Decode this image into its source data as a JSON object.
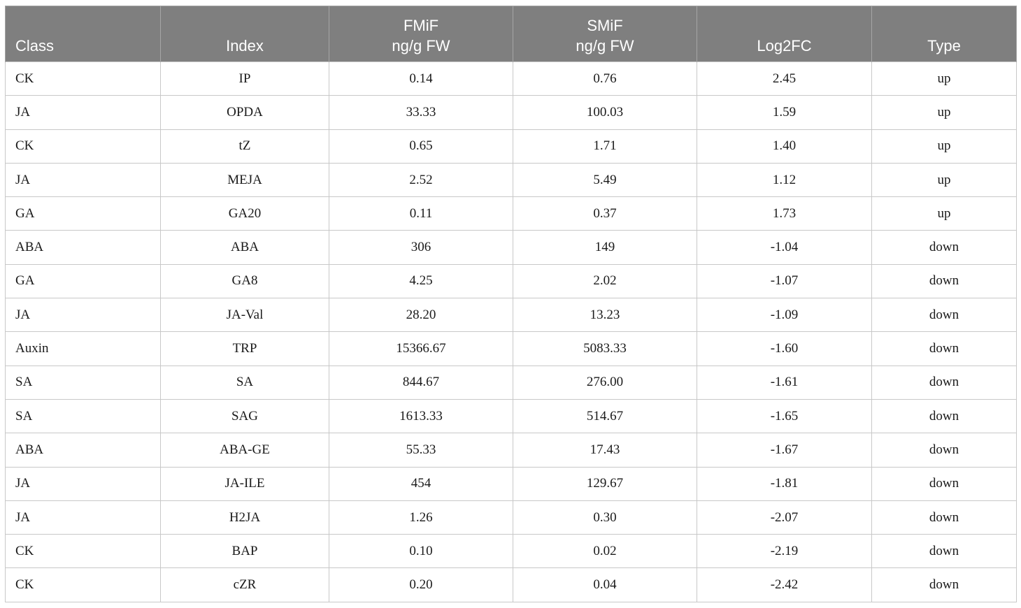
{
  "table": {
    "headers": [
      {
        "key": "class",
        "label": "Class"
      },
      {
        "key": "index",
        "label": "Index"
      },
      {
        "key": "fmif",
        "label": "FMiF\nng/g FW"
      },
      {
        "key": "smif",
        "label": "SMiF\nng/g FW"
      },
      {
        "key": "log2fc",
        "label": "Log2FC"
      },
      {
        "key": "type",
        "label": "Type"
      }
    ],
    "rows": [
      [
        "CK",
        "IP",
        "0.14",
        "0.76",
        "2.45",
        "up"
      ],
      [
        "JA",
        "OPDA",
        "33.33",
        "100.03",
        "1.59",
        "up"
      ],
      [
        "CK",
        "tZ",
        "0.65",
        "1.71",
        "1.40",
        "up"
      ],
      [
        "JA",
        "MEJA",
        "2.52",
        "5.49",
        "1.12",
        "up"
      ],
      [
        "GA",
        "GA20",
        "0.11",
        "0.37",
        "1.73",
        "up"
      ],
      [
        "ABA",
        "ABA",
        "306",
        "149",
        "-1.04",
        "down"
      ],
      [
        "GA",
        "GA8",
        "4.25",
        "2.02",
        "-1.07",
        "down"
      ],
      [
        "JA",
        "JA-Val",
        "28.20",
        "13.23",
        "-1.09",
        "down"
      ],
      [
        "Auxin",
        "TRP",
        "15366.67",
        "5083.33",
        "-1.60",
        "down"
      ],
      [
        "SA",
        "SA",
        "844.67",
        "276.00",
        "-1.61",
        "down"
      ],
      [
        "SA",
        "SAG",
        "1613.33",
        "514.67",
        "-1.65",
        "down"
      ],
      [
        "ABA",
        "ABA-GE",
        "55.33",
        "17.43",
        "-1.67",
        "down"
      ],
      [
        "JA",
        "JA-ILE",
        "454",
        "129.67",
        "-1.81",
        "down"
      ],
      [
        "JA",
        "H2JA",
        "1.26",
        "0.30",
        "-2.07",
        "down"
      ],
      [
        "CK",
        "BAP",
        "0.10",
        "0.02",
        "-2.19",
        "down"
      ],
      [
        "CK",
        "cZR",
        "0.20",
        "0.04",
        "-2.42",
        "down"
      ]
    ]
  }
}
